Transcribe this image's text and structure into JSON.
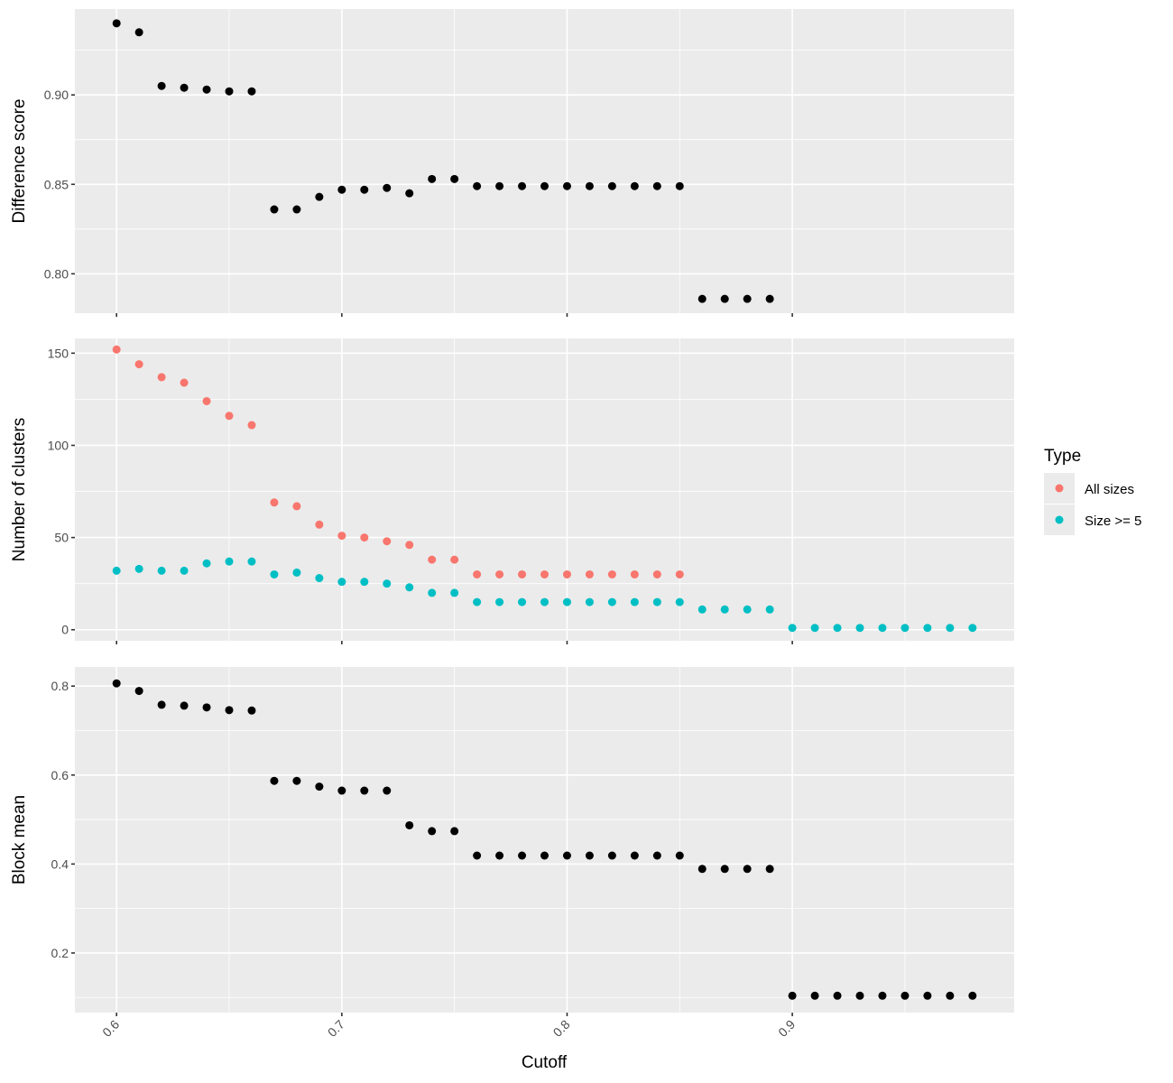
{
  "chart_data": [
    {
      "type": "scatter",
      "ylabel": "Difference score",
      "ylim": [
        0.778,
        0.948
      ],
      "yticks": [
        "0.80",
        "0.85",
        "0.90"
      ],
      "ytick_values": [
        0.8,
        0.85,
        0.9
      ],
      "grid": true,
      "series": [
        {
          "color": "#000000",
          "x": [
            0.6,
            0.61,
            0.62,
            0.63,
            0.64,
            0.65,
            0.66,
            0.67,
            0.68,
            0.69,
            0.7,
            0.71,
            0.72,
            0.73,
            0.74,
            0.75,
            0.76,
            0.77,
            0.78,
            0.79,
            0.8,
            0.81,
            0.82,
            0.83,
            0.84,
            0.85,
            0.86,
            0.87,
            0.88,
            0.89
          ],
          "y": [
            0.94,
            0.935,
            0.905,
            0.904,
            0.903,
            0.902,
            0.902,
            0.836,
            0.836,
            0.843,
            0.847,
            0.847,
            0.848,
            0.845,
            0.853,
            0.853,
            0.849,
            0.849,
            0.849,
            0.849,
            0.849,
            0.849,
            0.849,
            0.849,
            0.849,
            0.849,
            0.786,
            0.786,
            0.786,
            0.786
          ]
        }
      ]
    },
    {
      "type": "scatter",
      "ylabel": "Number of clusters",
      "ylim": [
        -6,
        158
      ],
      "yticks": [
        "0",
        "50",
        "100",
        "150"
      ],
      "ytick_values": [
        0,
        50,
        100,
        150
      ],
      "grid": true,
      "legend": {
        "title": "Type",
        "placement": "right"
      },
      "series": [
        {
          "name": "All sizes",
          "color": "#F8766D",
          "x": [
            0.6,
            0.61,
            0.62,
            0.63,
            0.64,
            0.65,
            0.66,
            0.67,
            0.68,
            0.69,
            0.7,
            0.71,
            0.72,
            0.73,
            0.74,
            0.75,
            0.76,
            0.77,
            0.78,
            0.79,
            0.8,
            0.81,
            0.82,
            0.83,
            0.84,
            0.85
          ],
          "y": [
            152,
            144,
            137,
            134,
            124,
            116,
            111,
            69,
            67,
            57,
            51,
            50,
            48,
            46,
            38,
            38,
            30,
            30,
            30,
            30,
            30,
            30,
            30,
            30,
            30,
            30
          ]
        },
        {
          "name": "Size >= 5",
          "color": "#00BFC4",
          "x": [
            0.6,
            0.61,
            0.62,
            0.63,
            0.64,
            0.65,
            0.66,
            0.67,
            0.68,
            0.69,
            0.7,
            0.71,
            0.72,
            0.73,
            0.74,
            0.75,
            0.76,
            0.77,
            0.78,
            0.79,
            0.8,
            0.81,
            0.82,
            0.83,
            0.84,
            0.85,
            0.86,
            0.87,
            0.88,
            0.89,
            0.9,
            0.91,
            0.92,
            0.93,
            0.94,
            0.95,
            0.96,
            0.97,
            0.98
          ],
          "y": [
            32,
            33,
            32,
            32,
            36,
            37,
            37,
            30,
            31,
            28,
            26,
            26,
            25,
            23,
            20,
            20,
            15,
            15,
            15,
            15,
            15,
            15,
            15,
            15,
            15,
            15,
            11,
            11,
            11,
            11,
            1,
            1,
            1,
            1,
            1,
            1,
            1,
            1,
            1
          ]
        }
      ]
    },
    {
      "type": "scatter",
      "ylabel": "Block mean",
      "xlabel": "Cutoff",
      "ylim": [
        0.066,
        0.843
      ],
      "yticks": [
        "0.2",
        "0.4",
        "0.6",
        "0.8"
      ],
      "ytick_values": [
        0.2,
        0.4,
        0.6,
        0.8
      ],
      "grid": true,
      "series": [
        {
          "color": "#000000",
          "x": [
            0.6,
            0.61,
            0.62,
            0.63,
            0.64,
            0.65,
            0.66,
            0.67,
            0.68,
            0.69,
            0.7,
            0.71,
            0.72,
            0.73,
            0.74,
            0.75,
            0.76,
            0.77,
            0.78,
            0.79,
            0.8,
            0.81,
            0.82,
            0.83,
            0.84,
            0.85,
            0.86,
            0.87,
            0.88,
            0.89,
            0.9,
            0.91,
            0.92,
            0.93,
            0.94,
            0.95,
            0.96,
            0.97,
            0.98
          ],
          "y": [
            0.806,
            0.789,
            0.758,
            0.756,
            0.752,
            0.746,
            0.745,
            0.587,
            0.587,
            0.574,
            0.565,
            0.565,
            0.565,
            0.487,
            0.474,
            0.474,
            0.419,
            0.419,
            0.419,
            0.419,
            0.419,
            0.419,
            0.419,
            0.419,
            0.419,
            0.419,
            0.389,
            0.389,
            0.389,
            0.389,
            0.104,
            0.104,
            0.104,
            0.104,
            0.104,
            0.104,
            0.104,
            0.104,
            0.104
          ]
        }
      ]
    }
  ],
  "x_axis": {
    "title": "Cutoff",
    "xlim": [
      0.5815,
      0.9985
    ],
    "ticks": [
      "0.6",
      "0.7",
      "0.8",
      "0.9"
    ],
    "tick_values": [
      0.6,
      0.7,
      0.8,
      0.9
    ],
    "tick_label_rotation": -45
  },
  "legend": {
    "title": "Type",
    "items": [
      {
        "label": "All sizes",
        "color": "#F8766D"
      },
      {
        "label": "Size >= 5",
        "color": "#00BFC4"
      }
    ]
  }
}
